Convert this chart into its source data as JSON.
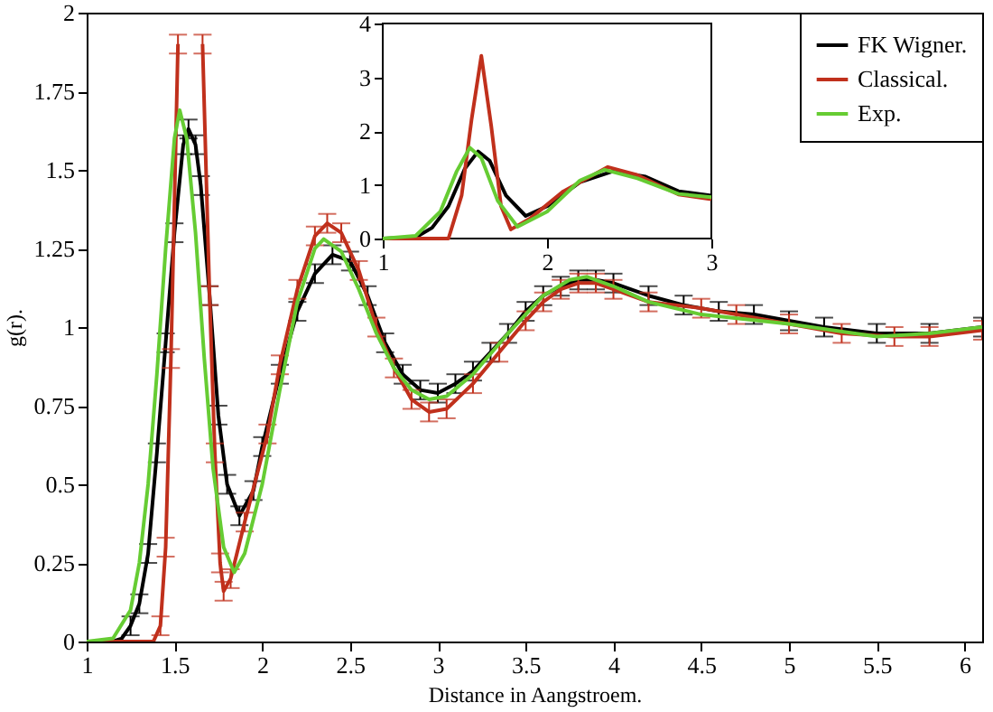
{
  "chart_data": [
    {
      "type": "line",
      "xlabel": "Distance in Aangstroem.",
      "ylabel": "g(r).",
      "xlim": [
        1,
        6.1
      ],
      "ylim": [
        0,
        2
      ],
      "xticks": [
        1,
        1.5,
        2,
        2.5,
        3,
        3.5,
        4,
        4.5,
        5,
        5.5,
        6
      ],
      "yticks": [
        0,
        0.25,
        0.5,
        0.75,
        1,
        1.25,
        1.5,
        1.75,
        2
      ],
      "grid": false,
      "legend": "top right",
      "series": [
        {
          "name": "FK Wigner.",
          "color": "#000000",
          "x": [
            1.0,
            1.15,
            1.2,
            1.25,
            1.3,
            1.35,
            1.4,
            1.45,
            1.5,
            1.55,
            1.58,
            1.62,
            1.65,
            1.7,
            1.75,
            1.8,
            1.87,
            1.95,
            2.0,
            2.1,
            2.2,
            2.3,
            2.4,
            2.5,
            2.6,
            2.7,
            2.8,
            2.9,
            3.0,
            3.1,
            3.2,
            3.3,
            3.4,
            3.5,
            3.6,
            3.7,
            3.8,
            3.9,
            4.0,
            4.2,
            4.4,
            4.6,
            4.8,
            5.0,
            5.2,
            5.5,
            5.8,
            6.1
          ],
          "values": [
            0,
            0,
            0.01,
            0.05,
            0.12,
            0.28,
            0.6,
            0.95,
            1.3,
            1.58,
            1.63,
            1.58,
            1.45,
            1.1,
            0.72,
            0.5,
            0.4,
            0.48,
            0.62,
            0.85,
            1.05,
            1.17,
            1.23,
            1.21,
            1.1,
            0.95,
            0.85,
            0.8,
            0.79,
            0.82,
            0.86,
            0.92,
            0.98,
            1.05,
            1.1,
            1.13,
            1.15,
            1.15,
            1.14,
            1.1,
            1.07,
            1.05,
            1.04,
            1.02,
            1.0,
            0.98,
            0.98,
            1.0
          ],
          "errors": [
            null,
            null,
            null,
            0.03,
            0.03,
            0.03,
            0.03,
            0.03,
            0.03,
            0.03,
            0.03,
            0.03,
            0.03,
            0.03,
            0.03,
            0.03,
            0.03,
            0.03,
            0.03,
            0.03,
            0.03,
            0.03,
            0.03,
            0.03,
            0.03,
            0.03,
            0.03,
            0.03,
            0.03,
            0.03,
            0.03,
            0.03,
            0.03,
            0.03,
            0.03,
            0.03,
            0.03,
            0.03,
            0.03,
            0.03,
            0.03,
            0.03,
            0.03,
            0.03,
            0.03,
            0.03,
            0.03,
            0.03
          ]
        },
        {
          "name": "Classical.",
          "color": "#c0301c",
          "x": [
            1.0,
            1.38,
            1.42,
            1.45,
            1.48,
            1.52,
            1.59,
            1.66,
            1.7,
            1.73,
            1.76,
            1.78,
            1.82,
            1.9,
            2.03,
            2.1,
            2.2,
            2.3,
            2.37,
            2.45,
            2.55,
            2.65,
            2.75,
            2.85,
            2.95,
            3.05,
            3.2,
            3.35,
            3.5,
            3.6,
            3.7,
            3.8,
            3.9,
            4.0,
            4.2,
            4.5,
            4.7,
            5.0,
            5.3,
            5.6,
            5.8,
            6.1
          ],
          "values": [
            0,
            0,
            0.05,
            0.3,
            0.9,
            1.9,
            null,
            1.9,
            1.1,
            0.6,
            0.25,
            0.16,
            0.2,
            0.38,
            0.66,
            0.88,
            1.12,
            1.29,
            1.33,
            1.3,
            1.18,
            1.0,
            0.87,
            0.77,
            0.73,
            0.74,
            0.82,
            0.92,
            1.02,
            1.08,
            1.12,
            1.14,
            1.14,
            1.12,
            1.08,
            1.06,
            1.04,
            1.01,
            0.98,
            0.97,
            0.97,
            0.99
          ],
          "errors": [
            null,
            null,
            0.03,
            0.03,
            0.03,
            0.03,
            null,
            0.03,
            0.03,
            0.03,
            0.03,
            0.03,
            0.03,
            0.03,
            0.03,
            0.03,
            0.03,
            0.03,
            0.03,
            0.03,
            0.03,
            0.03,
            0.03,
            0.03,
            0.03,
            0.03,
            0.03,
            0.03,
            0.03,
            0.03,
            0.03,
            0.03,
            0.03,
            0.03,
            0.03,
            0.03,
            0.03,
            0.03,
            0.03,
            0.03,
            0.03,
            0.03
          ]
        },
        {
          "name": "Exp.",
          "color": "#66cc33",
          "x": [
            1.0,
            1.15,
            1.25,
            1.3,
            1.35,
            1.4,
            1.45,
            1.5,
            1.53,
            1.57,
            1.62,
            1.67,
            1.72,
            1.78,
            1.84,
            1.9,
            2.0,
            2.1,
            2.2,
            2.3,
            2.35,
            2.45,
            2.55,
            2.65,
            2.75,
            2.85,
            2.95,
            3.05,
            3.2,
            3.4,
            3.6,
            3.75,
            3.85,
            4.0,
            4.2,
            4.5,
            5.0,
            5.5,
            5.8,
            6.1
          ],
          "values": [
            0,
            0.01,
            0.1,
            0.25,
            0.5,
            0.85,
            1.25,
            1.6,
            1.69,
            1.6,
            1.3,
            0.9,
            0.55,
            0.3,
            0.22,
            0.28,
            0.5,
            0.8,
            1.08,
            1.25,
            1.28,
            1.24,
            1.12,
            0.98,
            0.87,
            0.8,
            0.77,
            0.78,
            0.85,
            0.98,
            1.1,
            1.15,
            1.16,
            1.13,
            1.08,
            1.04,
            1.01,
            0.97,
            0.98,
            1.0
          ]
        }
      ]
    },
    {
      "type": "line",
      "xlim": [
        1,
        3
      ],
      "ylim": [
        0,
        4
      ],
      "xticks": [
        1,
        2,
        3
      ],
      "yticks": [
        0,
        1,
        2,
        3,
        4
      ],
      "grid": false,
      "series": [
        {
          "color": "#000000",
          "x": [
            1.0,
            1.2,
            1.3,
            1.4,
            1.5,
            1.58,
            1.65,
            1.75,
            1.87,
            2.0,
            2.2,
            2.4,
            2.6,
            2.8,
            3.0
          ],
          "values": [
            0,
            0.02,
            0.2,
            0.6,
            1.3,
            1.62,
            1.45,
            0.8,
            0.42,
            0.6,
            1.05,
            1.25,
            1.15,
            0.88,
            0.8
          ]
        },
        {
          "color": "#c0301c",
          "x": [
            1.0,
            1.4,
            1.48,
            1.54,
            1.6,
            1.66,
            1.72,
            1.78,
            1.9,
            2.1,
            2.37,
            2.55,
            2.8,
            3.0
          ],
          "values": [
            0,
            0,
            0.8,
            2.2,
            3.4,
            2.1,
            0.6,
            0.17,
            0.38,
            0.88,
            1.33,
            1.18,
            0.82,
            0.73
          ]
        },
        {
          "color": "#66cc33",
          "x": [
            1.0,
            1.2,
            1.35,
            1.45,
            1.53,
            1.6,
            1.7,
            1.82,
            2.0,
            2.2,
            2.35,
            2.55,
            2.8,
            3.0
          ],
          "values": [
            0,
            0.05,
            0.5,
            1.25,
            1.69,
            1.5,
            0.7,
            0.22,
            0.5,
            1.08,
            1.28,
            1.12,
            0.83,
            0.77
          ]
        }
      ]
    }
  ]
}
